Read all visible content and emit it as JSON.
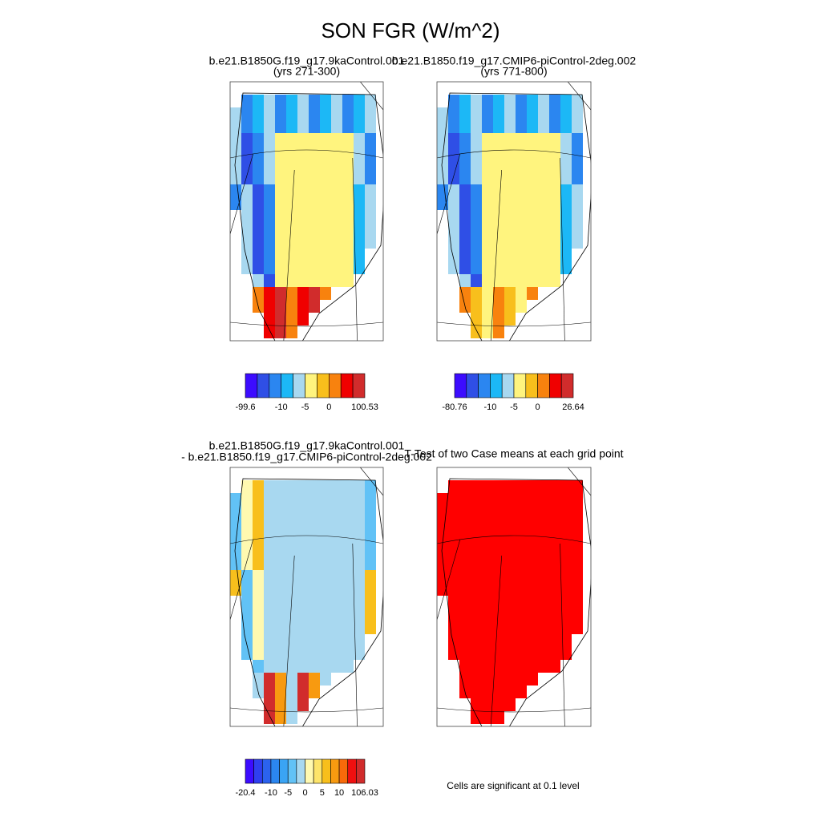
{
  "title": "SON FGR (W/m^2)",
  "panels": [
    {
      "title": [
        "b.e21.B1850G.f19_g17.9kaControl.001",
        "(yrs 271-300)"
      ]
    },
    {
      "title": [
        "b.e21.B1850.f19_g17.CMIP6-piControl-2deg.002",
        "(yrs 771-800)"
      ]
    },
    {
      "title": [
        "b.e21.B1850G.f19_g17.9kaControl.001",
        "- b.e21.B1850.f19_g17.CMIP6-piControl-2deg.002"
      ]
    },
    {
      "title": [
        "T-Test of two Case means at each grid point"
      ]
    }
  ],
  "colorbars": [
    {
      "colors": [
        "#3c0cff",
        "#2f4fe6",
        "#2b86f0",
        "#1cb8f6",
        "#a8d8f0",
        "#fff47e",
        "#f8bf1c",
        "#f8820e",
        "#f00000",
        "#d12c2c"
      ],
      "labels": [
        "-99.6",
        "-10",
        "-5",
        "0",
        "100.53"
      ]
    },
    {
      "colors": [
        "#3c0cff",
        "#2f4fe6",
        "#2b86f0",
        "#1cb8f6",
        "#a8d8f0",
        "#fff47e",
        "#f8bf1c",
        "#f8820e",
        "#f00000",
        "#d12c2c"
      ],
      "labels": [
        "-80.76",
        "-10",
        "-5",
        "0",
        "26.64"
      ]
    },
    {
      "colors": [
        "#3c0cff",
        "#2f3ff0",
        "#2b62ee",
        "#2b86f0",
        "#3aa4f4",
        "#62c2f6",
        "#a8d8f0",
        "#fff9b0",
        "#fde46a",
        "#f8bf1c",
        "#f89a10",
        "#f86a0a",
        "#f01010",
        "#d12c2c"
      ],
      "labels": [
        "-20.4",
        "-10",
        "-5",
        "0",
        "5",
        "10",
        "106.03"
      ]
    }
  ],
  "note": "Cells are significant at 0.1 level"
}
